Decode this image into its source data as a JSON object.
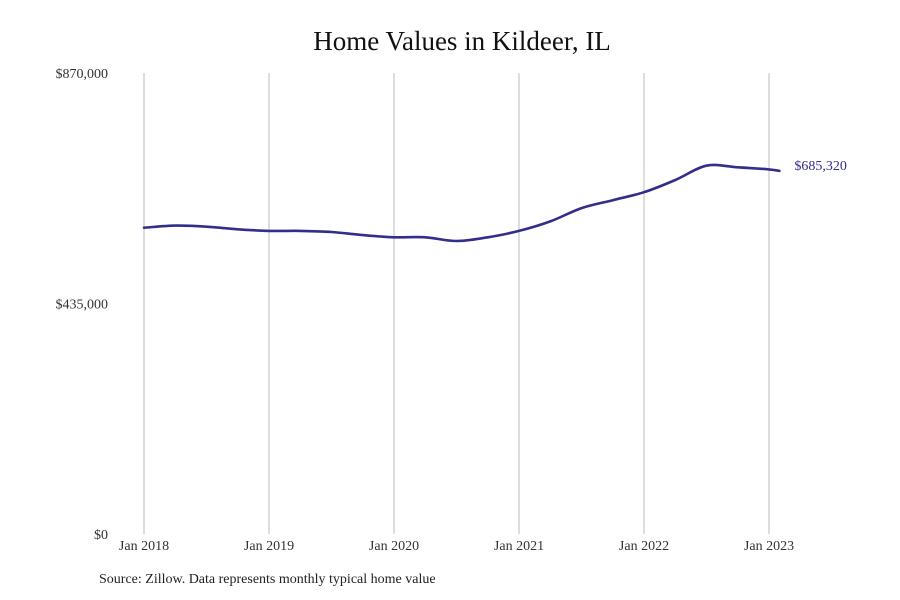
{
  "chart_data": {
    "type": "line",
    "title": "Home Values in Kildeer, IL",
    "xlabel": "",
    "ylabel": "",
    "ylim": [
      0,
      870000
    ],
    "xlim": [
      "2018-01",
      "2023-02"
    ],
    "y_ticks": [
      {
        "value": 0,
        "label": "$0"
      },
      {
        "value": 435000,
        "label": "$435,000"
      },
      {
        "value": 870000,
        "label": "$870,000"
      }
    ],
    "x_ticks": [
      {
        "value": "2018-01",
        "label": "Jan 2018"
      },
      {
        "value": "2019-01",
        "label": "Jan 2019"
      },
      {
        "value": "2020-01",
        "label": "Jan 2020"
      },
      {
        "value": "2021-01",
        "label": "Jan 2021"
      },
      {
        "value": "2022-01",
        "label": "Jan 2022"
      },
      {
        "value": "2023-01",
        "label": "Jan 2023"
      }
    ],
    "grid": {
      "vertical": true,
      "horizontal": false
    },
    "line_color": "#332e8a",
    "grid_color": "#bbbbbb",
    "series": [
      {
        "x": [
          "2018-01",
          "2018-04",
          "2018-07",
          "2018-10",
          "2019-01",
          "2019-04",
          "2019-07",
          "2019-10",
          "2020-01",
          "2020-04",
          "2020-07",
          "2020-10",
          "2021-01",
          "2021-04",
          "2021-07",
          "2021-10",
          "2022-01",
          "2022-04",
          "2022-07",
          "2022-10",
          "2023-01",
          "2023-02"
        ],
        "y": [
          578000,
          582000,
          580000,
          575000,
          572000,
          572000,
          570000,
          564000,
          560000,
          560000,
          553000,
          560000,
          572000,
          590000,
          615000,
          630000,
          645000,
          668000,
          695000,
          692000,
          688000,
          685320
        ]
      }
    ],
    "end_label": "$685,320"
  },
  "source_note": "Source: Zillow. Data represents monthly typical home value"
}
